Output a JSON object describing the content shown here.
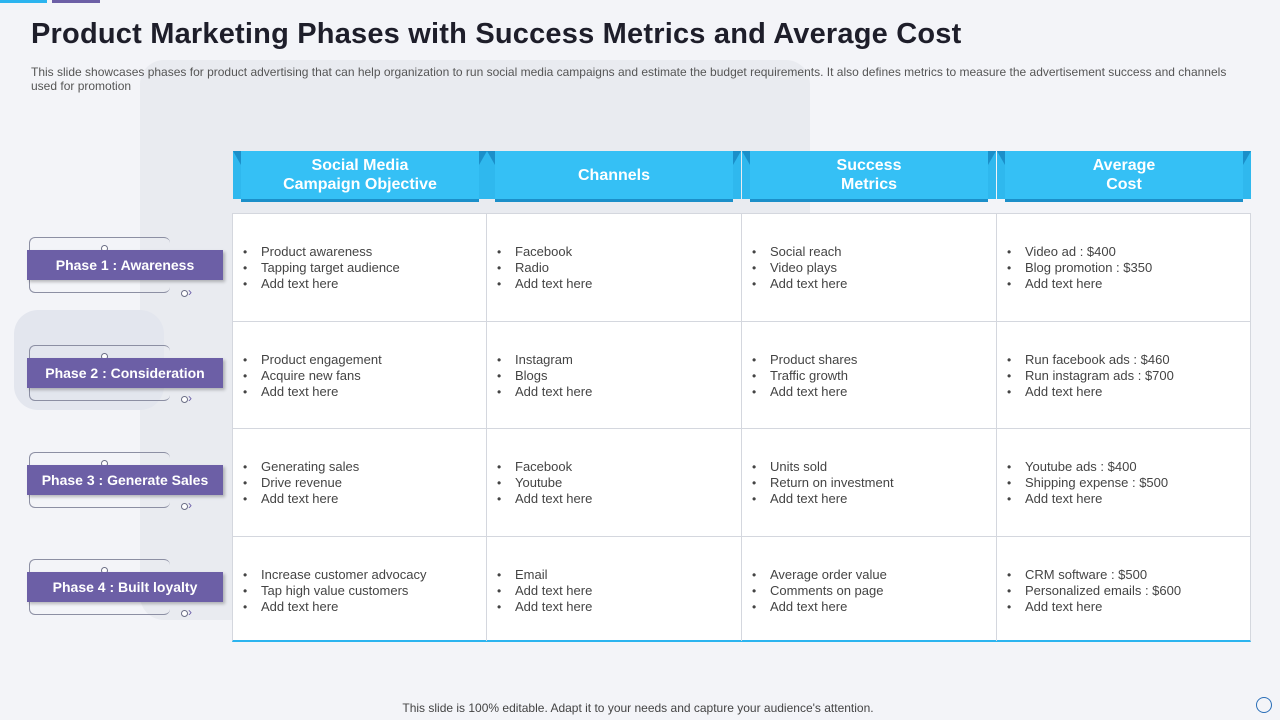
{
  "title": "Product Marketing Phases with Success Metrics and Average Cost",
  "subtitle": "This slide showcases phases for product advertising that can help organization to run social media campaigns and estimate the budget requirements. It also defines metrics to measure the advertisement success and channels used for promotion",
  "columns": [
    {
      "label": "Social Media\nCampaign Objective"
    },
    {
      "label": "Channels"
    },
    {
      "label": "Success\nMetrics"
    },
    {
      "label": "Average\nCost"
    }
  ],
  "phases": [
    {
      "label": "Phase 1 : Awareness"
    },
    {
      "label": "Phase 2 : Consideration"
    },
    {
      "label": "Phase 3 : Generate Sales"
    },
    {
      "label": "Phase 4 : Built loyalty"
    }
  ],
  "rows": [
    [
      [
        "Product awareness",
        "Tapping target audience",
        "Add text here"
      ],
      [
        "Facebook",
        "Radio",
        "Add text here"
      ],
      [
        "Social reach",
        "Video plays",
        "Add text here"
      ],
      [
        "Video ad : $400",
        "Blog promotion : $350",
        "Add text here"
      ]
    ],
    [
      [
        "Product engagement",
        "Acquire new fans",
        "Add text here"
      ],
      [
        "Instagram",
        "Blogs",
        "Add text here"
      ],
      [
        "Product shares",
        "Traffic growth",
        "Add text here"
      ],
      [
        "Run facebook ads : $460",
        "Run instagram ads : $700",
        "Add text here"
      ]
    ],
    [
      [
        "Generating sales",
        "Drive revenue",
        "Add text here"
      ],
      [
        "Facebook",
        "Youtube",
        "Add text here"
      ],
      [
        "Units sold",
        "Return on investment",
        "Add text here"
      ],
      [
        "Youtube ads : $400",
        "Shipping expense : $500",
        "Add text here"
      ]
    ],
    [
      [
        "Increase customer advocacy",
        "Tap high value customers",
        "Add text here"
      ],
      [
        "Email",
        "Add text here",
        "Add text here"
      ],
      [
        "Average order value",
        "Comments on page",
        "Add text here"
      ],
      [
        "CRM software : $500",
        "Personalized emails : $600",
        "Add text here"
      ]
    ]
  ],
  "footer": "This slide is 100% editable. Adapt it to your needs and capture your audience's attention.",
  "colors": {
    "header_blue": "#35c0f5",
    "header_shadow": "#1b8fc9",
    "phase_purple": "#6c5fa6",
    "accent_line_blue": "#2bb4ef"
  }
}
